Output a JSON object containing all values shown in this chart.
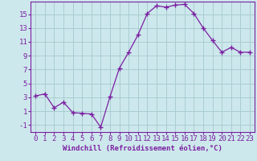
{
  "x": [
    0,
    1,
    2,
    3,
    4,
    5,
    6,
    7,
    8,
    9,
    10,
    11,
    12,
    13,
    14,
    15,
    16,
    17,
    18,
    19,
    20,
    21,
    22,
    23
  ],
  "y": [
    3.2,
    3.5,
    1.5,
    2.3,
    0.8,
    0.7,
    0.6,
    -1.3,
    3.1,
    7.2,
    9.5,
    12.0,
    15.1,
    16.2,
    16.0,
    16.3,
    16.4,
    15.1,
    13.0,
    11.2,
    9.5,
    10.2,
    9.5,
    9.5
  ],
  "line_color": "#7b1fa2",
  "marker": "+",
  "marker_size": 4,
  "bg_color": "#cde8ec",
  "grid_color": "#a8cdd2",
  "xlabel": "Windchill (Refroidissement éolien,°C)",
  "xlim": [
    -0.5,
    23.5
  ],
  "ylim": [
    -2.0,
    16.8
  ],
  "xticks": [
    0,
    1,
    2,
    3,
    4,
    5,
    6,
    7,
    8,
    9,
    10,
    11,
    12,
    13,
    14,
    15,
    16,
    17,
    18,
    19,
    20,
    21,
    22,
    23
  ],
  "yticks": [
    -1,
    1,
    3,
    5,
    7,
    9,
    11,
    13,
    15
  ],
  "tick_color": "#7b1fa2",
  "label_color": "#7b1fa2",
  "font_size": 6.5
}
